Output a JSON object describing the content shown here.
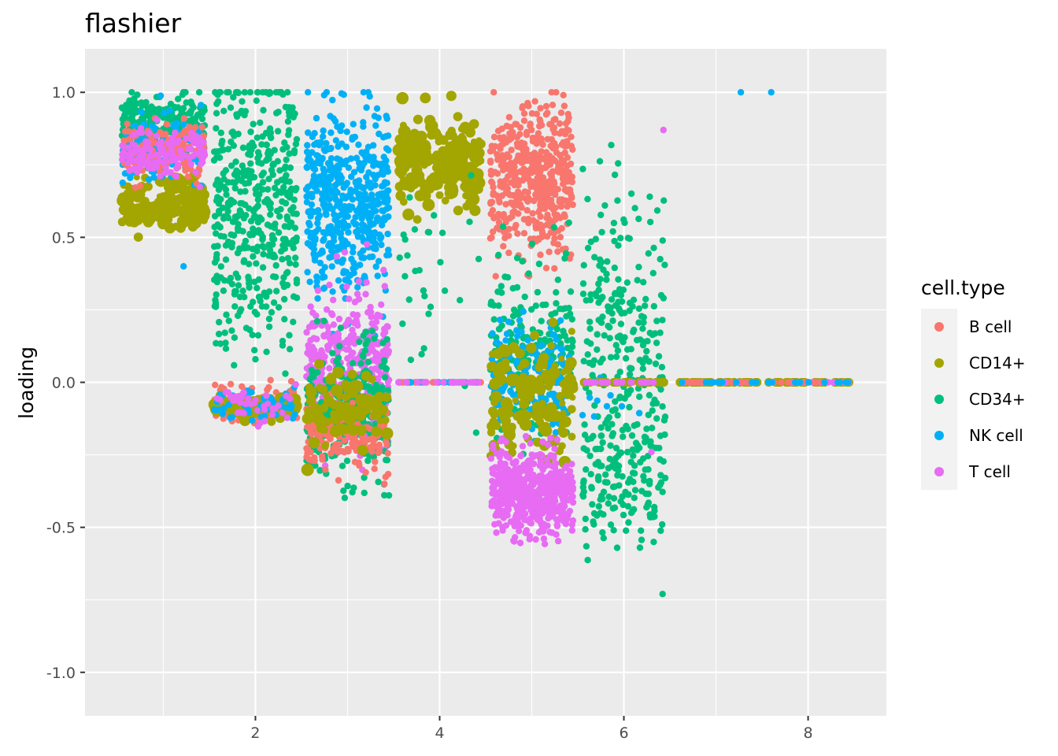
{
  "chart_data": {
    "type": "scatter",
    "title": "flashier",
    "xlabel": "",
    "ylabel": "loading",
    "xlim": [
      0.15,
      8.85
    ],
    "ylim": [
      -1.15,
      1.15
    ],
    "x_ticks": [
      2,
      4,
      6,
      8
    ],
    "x_tick_labels": [
      "2",
      "4",
      "6",
      "8"
    ],
    "y_ticks": [
      -1.0,
      -0.5,
      0.0,
      0.5,
      1.0
    ],
    "y_tick_labels": [
      "-1.0",
      "-0.5",
      "0.0",
      "0.5",
      "1.0"
    ],
    "grid": true,
    "legend": {
      "title": "cell.type",
      "placement": "right"
    },
    "jitter_width": 0.45,
    "series": [
      {
        "name": "B cell",
        "color": "#F8766D"
      },
      {
        "name": "CD14+",
        "color": "#A3A500"
      },
      {
        "name": "CD34+",
        "color": "#00BF7D"
      },
      {
        "name": "NK cell",
        "color": "#00B0F6"
      },
      {
        "name": "T cell",
        "color": "#E76BF3"
      }
    ],
    "groups": [
      {
        "x": 1,
        "clusters": [
          {
            "series": "CD34+",
            "center": 0.9,
            "spread": 0.05,
            "count": 220
          },
          {
            "series": "CD14+",
            "center": 0.62,
            "spread": 0.05,
            "count": 160
          },
          {
            "series": "NK cell",
            "center": 0.82,
            "spread": 0.06,
            "count": 120
          },
          {
            "series": "B cell",
            "center": 0.8,
            "spread": 0.05,
            "count": 120
          },
          {
            "series": "T cell",
            "center": 0.79,
            "spread": 0.04,
            "count": 140
          }
        ]
      },
      {
        "x": 2,
        "clusters": [
          {
            "series": "CD34+",
            "center": 0.6,
            "spread": 0.25,
            "count": 460
          },
          {
            "series": "B cell",
            "center": -0.08,
            "spread": 0.03,
            "count": 150
          },
          {
            "series": "CD14+",
            "center": -0.09,
            "spread": 0.02,
            "count": 60
          },
          {
            "series": "NK cell",
            "center": -0.08,
            "spread": 0.03,
            "count": 50
          },
          {
            "series": "T cell",
            "center": -0.08,
            "spread": 0.03,
            "count": 40
          }
        ]
      },
      {
        "x": 3,
        "clusters": [
          {
            "series": "NK cell",
            "center": 0.62,
            "spread": 0.15,
            "count": 520
          },
          {
            "series": "T cell",
            "center": 0.05,
            "spread": 0.15,
            "count": 380
          },
          {
            "series": "CD34+",
            "center": -0.1,
            "spread": 0.12,
            "count": 260
          },
          {
            "series": "B cell",
            "center": -0.18,
            "spread": 0.06,
            "count": 150
          },
          {
            "series": "CD14+",
            "center": -0.1,
            "spread": 0.06,
            "count": 90
          }
        ]
      },
      {
        "x": 4,
        "clusters": [
          {
            "series": "CD14+",
            "center": 0.76,
            "spread": 0.08,
            "count": 240
          },
          {
            "series": "CD34+",
            "center": 0.35,
            "spread": 0.2,
            "count": 30
          },
          {
            "series": "B cell",
            "center": 0.0,
            "spread": 0.0,
            "count": 25
          },
          {
            "series": "NK cell",
            "center": 0.0,
            "spread": 0.0,
            "count": 25
          },
          {
            "series": "T cell",
            "center": 0.0,
            "spread": 0.0,
            "count": 25
          }
        ]
      },
      {
        "x": 5,
        "clusters": [
          {
            "series": "B cell",
            "center": 0.7,
            "spread": 0.12,
            "count": 480
          },
          {
            "series": "CD34+",
            "center": 0.1,
            "spread": 0.15,
            "count": 230
          },
          {
            "series": "NK cell",
            "center": 0.02,
            "spread": 0.08,
            "count": 190
          },
          {
            "series": "CD14+",
            "center": -0.05,
            "spread": 0.12,
            "count": 140
          },
          {
            "series": "T cell",
            "center": -0.38,
            "spread": 0.07,
            "count": 520
          }
        ]
      },
      {
        "x": 6,
        "clusters": [
          {
            "series": "CD34+",
            "center": 0.25,
            "spread": 0.22,
            "count": 190
          },
          {
            "series": "CD34+",
            "center": -0.3,
            "spread": 0.15,
            "count": 190
          },
          {
            "series": "NK cell",
            "center": -0.05,
            "spread": 0.05,
            "count": 10
          },
          {
            "series": "B cell",
            "center": 0.0,
            "spread": 0.0,
            "count": 20
          },
          {
            "series": "CD14+",
            "center": 0.0,
            "spread": 0.0,
            "count": 30
          },
          {
            "series": "T cell",
            "center": 0.0,
            "spread": 0.0,
            "count": 20
          }
        ]
      },
      {
        "x": 7,
        "clusters": [
          {
            "series": "CD14+",
            "center": 0.0,
            "spread": 0.0,
            "count": 35
          },
          {
            "series": "T cell",
            "center": 0.0,
            "spread": 0.0,
            "count": 20
          },
          {
            "series": "B cell",
            "center": 0.0,
            "spread": 0.0,
            "count": 12
          },
          {
            "series": "NK cell",
            "center": 0.0,
            "spread": 0.0,
            "count": 12
          }
        ]
      },
      {
        "x": 8,
        "clusters": [
          {
            "series": "CD14+",
            "center": 0.0,
            "spread": 0.0,
            "count": 35
          },
          {
            "series": "T cell",
            "center": 0.0,
            "spread": 0.0,
            "count": 20
          },
          {
            "series": "B cell",
            "center": 0.0,
            "spread": 0.0,
            "count": 12
          },
          {
            "series": "NK cell",
            "center": 0.0,
            "spread": 0.0,
            "count": 12
          }
        ]
      }
    ],
    "outliers": [
      {
        "series": "NK cell",
        "x": 7.27,
        "y": 1.0
      },
      {
        "series": "NK cell",
        "x": 7.6,
        "y": 1.0
      },
      {
        "series": "T cell",
        "x": 6.43,
        "y": 0.87
      },
      {
        "series": "NK cell",
        "x": 1.22,
        "y": 0.4
      },
      {
        "series": "CD34+",
        "x": 6.42,
        "y": -0.73
      },
      {
        "series": "T cell",
        "x": 6.3,
        "y": -0.24
      },
      {
        "series": "B cell",
        "x": 3.4,
        "y": -0.35
      },
      {
        "series": "CD34+",
        "x": 3.45,
        "y": -0.39
      }
    ]
  }
}
